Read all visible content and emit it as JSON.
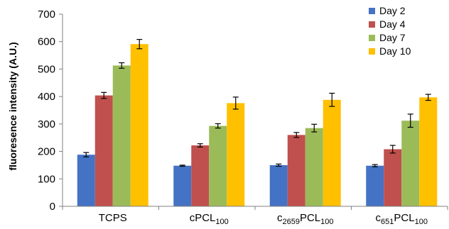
{
  "chart_data": {
    "type": "bar",
    "ylabel": "fluoresence intensity (A.U.)",
    "ylim": [
      0,
      700
    ],
    "yticks": [
      0,
      100,
      200,
      300,
      400,
      500,
      600,
      700
    ],
    "grid": false,
    "legend_position": "top-right",
    "categories": [
      {
        "main": "TCPS",
        "sub": ""
      },
      {
        "main": "cPCL",
        "sub": "100"
      },
      {
        "main": "c",
        "sub": "2659",
        "main2": "PCL",
        "sub2": "100"
      },
      {
        "main": "c",
        "sub": "651",
        "main2": "PCL",
        "sub2": "100"
      }
    ],
    "series": [
      {
        "name": "Day 2",
        "color": "#4472C4",
        "values": [
          188,
          148,
          150,
          148
        ],
        "errors": [
          8,
          2,
          4,
          4
        ]
      },
      {
        "name": "Day 4",
        "color": "#C0504D",
        "values": [
          404,
          222,
          260,
          208
        ],
        "errors": [
          11,
          6,
          9,
          14
        ]
      },
      {
        "name": "Day 7",
        "color": "#9BBB59",
        "values": [
          513,
          293,
          285,
          312
        ],
        "errors": [
          10,
          8,
          14,
          24
        ]
      },
      {
        "name": "Day 10",
        "color": "#FFC000",
        "values": [
          591,
          376,
          388,
          397
        ],
        "errors": [
          17,
          22,
          24,
          11
        ]
      }
    ]
  }
}
